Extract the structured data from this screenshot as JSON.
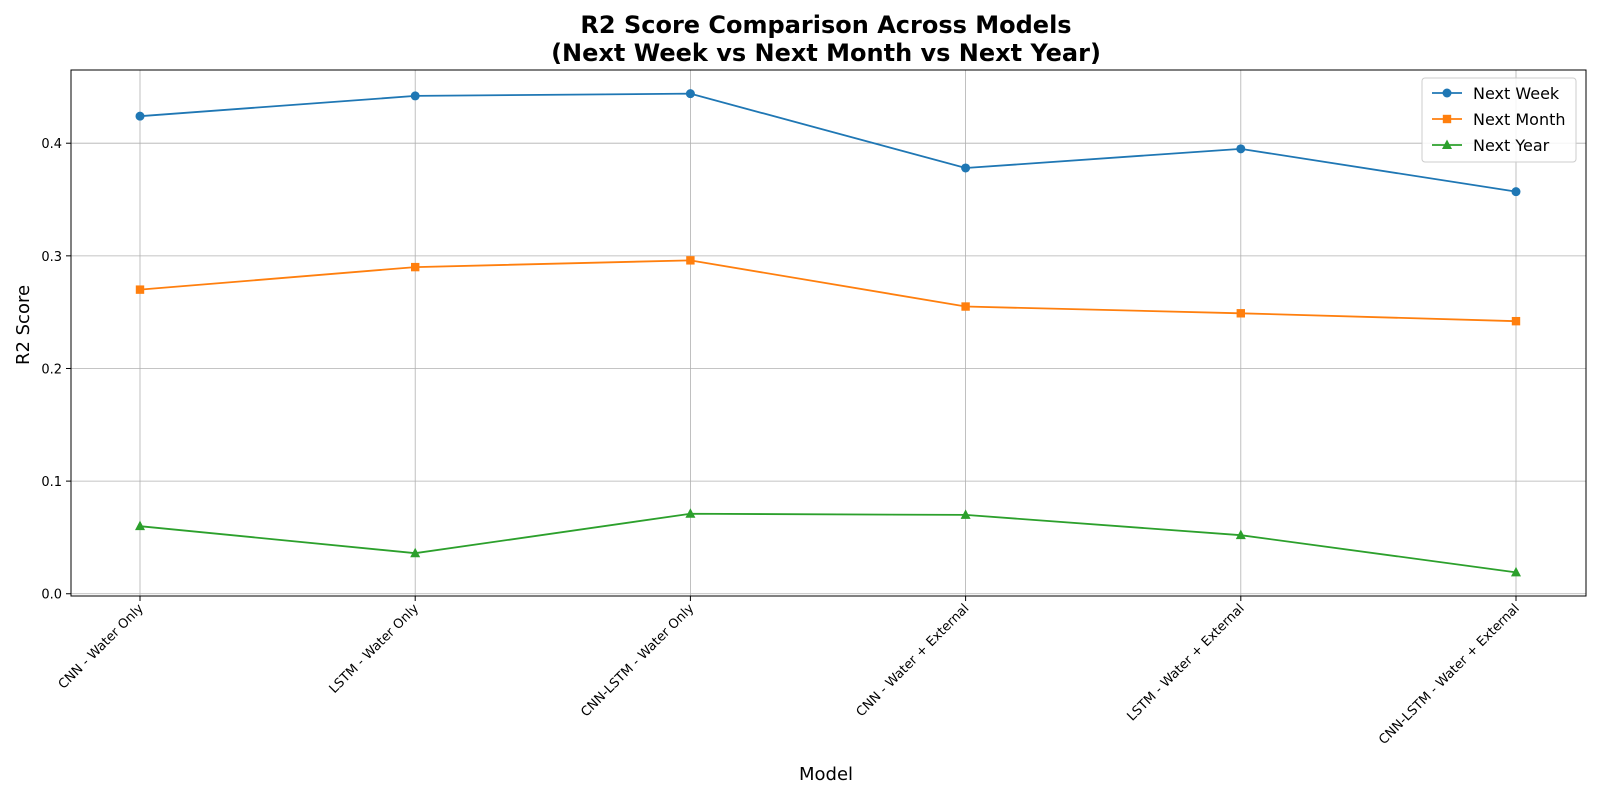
{
  "chart_data": {
    "type": "line",
    "title_line1": "R2 Score Comparison Across Models",
    "title_line2": "(Next Week vs Next Month vs Next Year)",
    "xlabel": "Model",
    "ylabel": "R2 Score",
    "categories": [
      "CNN - Water Only",
      "LSTM - Water Only",
      "CNN-LSTM - Water Only",
      "CNN - Water + External",
      "LSTM - Water + External",
      "CNN-LSTM - Water + External"
    ],
    "ylim": [
      -0.002,
      0.465
    ],
    "yticks": [
      0.0,
      0.1,
      0.2,
      0.3,
      0.4
    ],
    "ytick_labels": [
      "0.0",
      "0.1",
      "0.2",
      "0.3",
      "0.4"
    ],
    "grid": true,
    "legend_position": "top-right",
    "series": [
      {
        "name": "Next Week",
        "color": "#1f77b4",
        "marker": "circle",
        "values": [
          0.424,
          0.442,
          0.444,
          0.378,
          0.395,
          0.357
        ]
      },
      {
        "name": "Next Month",
        "color": "#ff7f0e",
        "marker": "square",
        "values": [
          0.27,
          0.29,
          0.296,
          0.255,
          0.249,
          0.242
        ]
      },
      {
        "name": "Next Year",
        "color": "#2ca02c",
        "marker": "triangle",
        "values": [
          0.06,
          0.036,
          0.071,
          0.07,
          0.052,
          0.019
        ]
      }
    ]
  }
}
